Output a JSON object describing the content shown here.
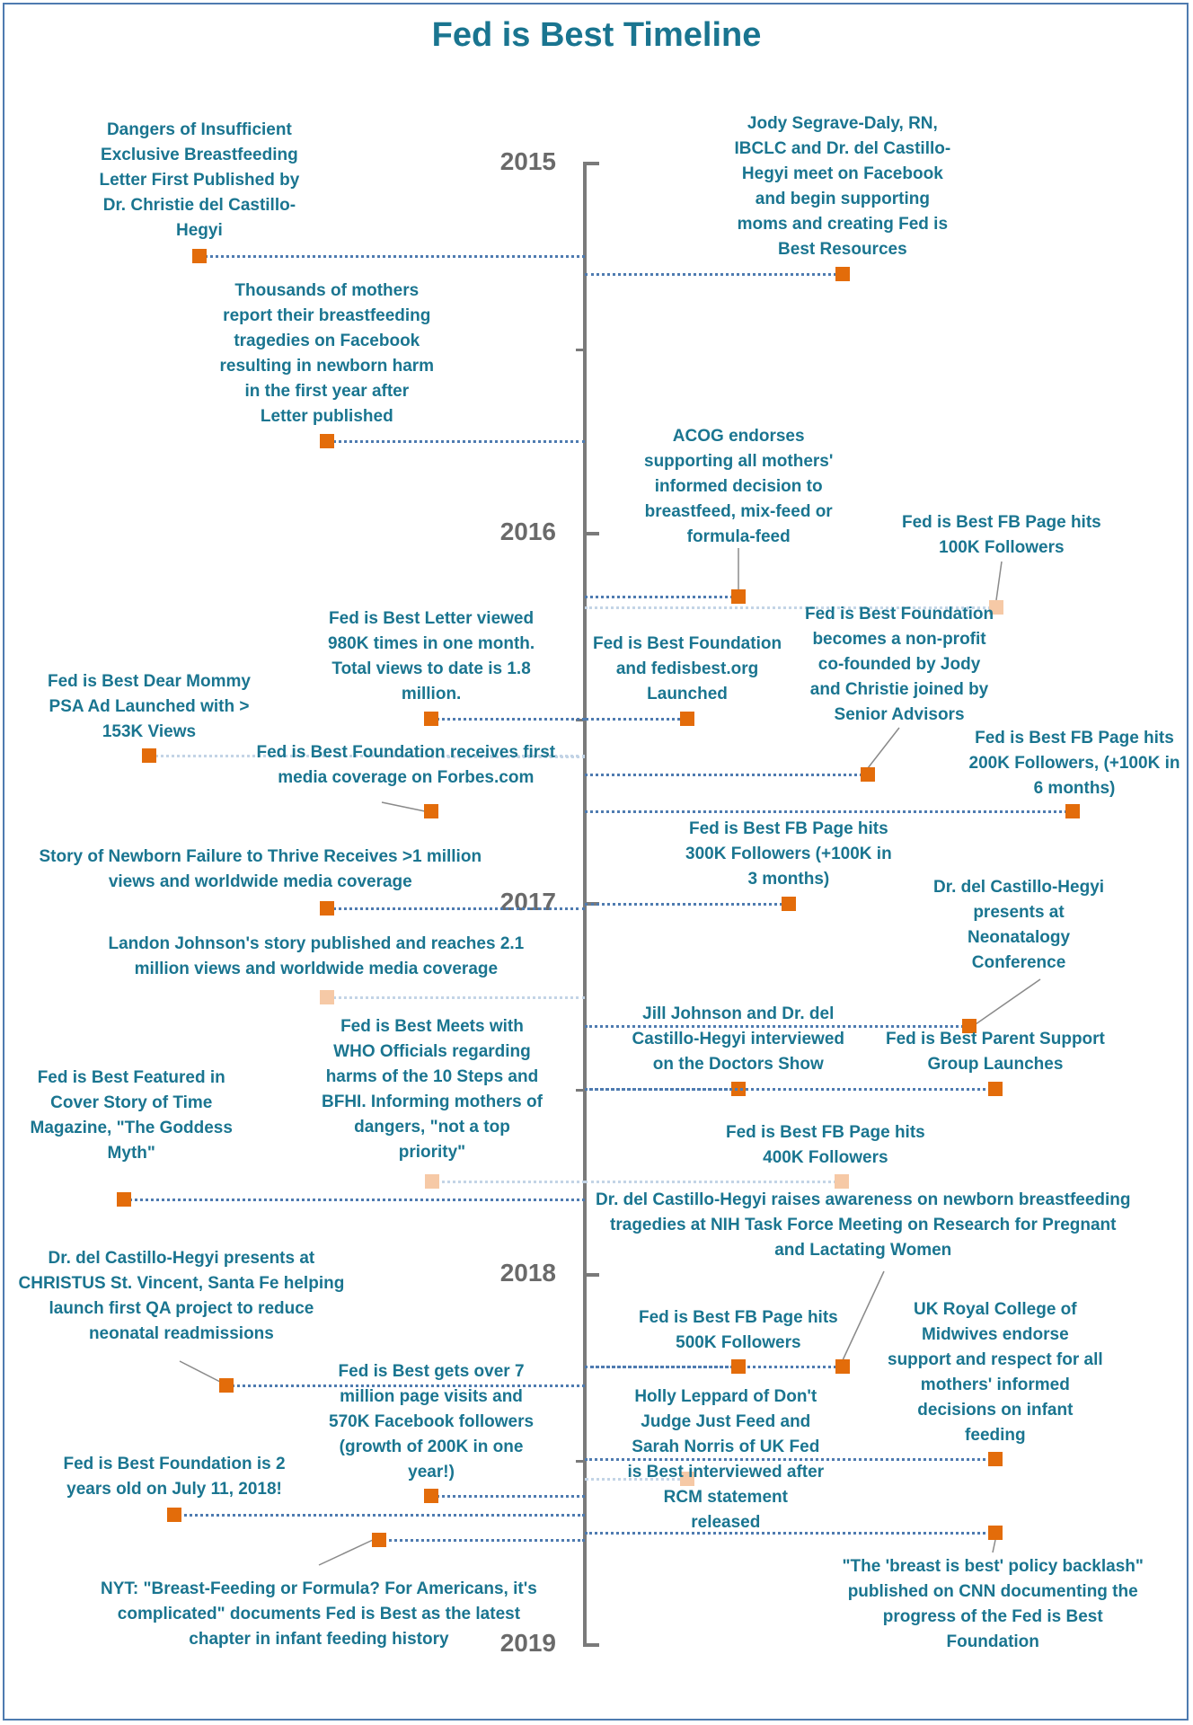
{
  "title": "Fed is Best Timeline",
  "years": [
    "2015",
    "2016",
    "2017",
    "2018",
    "2019"
  ],
  "events": [
    {
      "id": "e01",
      "lines": [
        "Dangers of Insufficient",
        "Exclusive Breastfeeding",
        "Letter First Published by",
        "Dr. Christie del Castillo-",
        "Hegyi"
      ]
    },
    {
      "id": "e02",
      "lines": [
        "Jody Segrave-Daly, RN,",
        "IBCLC and Dr. del Castillo-",
        "Hegyi meet on Facebook",
        "and begin supporting",
        "moms and creating Fed is",
        "Best Resources"
      ]
    },
    {
      "id": "e03",
      "lines": [
        "Thousands of mothers",
        "report their breastfeeding",
        "tragedies on Facebook",
        "resulting in newborn harm",
        "in the first year after",
        "Letter published"
      ]
    },
    {
      "id": "e04",
      "lines": [
        "ACOG endorses",
        "supporting all mothers'",
        "informed decision to",
        "breastfeed, mix-feed or",
        "formula-feed"
      ]
    },
    {
      "id": "e05",
      "lines": [
        "Fed is Best FB Page hits",
        "100K Followers"
      ]
    },
    {
      "id": "e06",
      "lines": [
        "Fed is Best Letter viewed",
        "980K times in one month.",
        "Total views to date is 1.8",
        "million."
      ]
    },
    {
      "id": "e07",
      "lines": [
        "Fed is Best Foundation",
        "and fedisbest.org",
        "Launched"
      ]
    },
    {
      "id": "e08",
      "lines": [
        "Fed is Best Foundation",
        "becomes a non-profit",
        "co-founded by Jody",
        "and Christie joined by",
        "Senior Advisors"
      ]
    },
    {
      "id": "e09",
      "lines": [
        "Fed is Best Dear Mommy",
        "PSA Ad Launched with >",
        "153K Views"
      ]
    },
    {
      "id": "e10",
      "lines": [
        "Fed is Best Foundation receives first",
        "media coverage on Forbes.com"
      ]
    },
    {
      "id": "e11",
      "lines": [
        "Fed is Best FB Page hits",
        "200K Followers, (+100K in",
        "6 months)"
      ]
    },
    {
      "id": "e12",
      "lines": [
        "Fed is Best FB Page hits",
        "300K Followers (+100K in",
        "3 months)"
      ]
    },
    {
      "id": "e13",
      "lines": [
        "Story of Newborn Failure to Thrive Receives >1 million",
        "views and worldwide media coverage"
      ]
    },
    {
      "id": "e14",
      "lines": [
        "Dr. del Castillo-Hegyi",
        "presents at",
        "Neonatalogy",
        "Conference"
      ]
    },
    {
      "id": "e15",
      "lines": [
        "Landon Johnson's story published and reaches 2.1",
        "million views and worldwide media coverage"
      ]
    },
    {
      "id": "e16",
      "lines": [
        "Jill Johnson and Dr. del",
        "Castillo-Hegyi interviewed",
        "on the Doctors Show"
      ]
    },
    {
      "id": "e17",
      "lines": [
        "Fed is Best Parent Support",
        "Group Launches"
      ]
    },
    {
      "id": "e18",
      "lines": [
        "Fed is Best Meets with",
        "WHO Officials regarding",
        "harms of the 10 Steps and",
        "BFHI. Informing mothers of",
        "dangers, \"not a top",
        "priority\""
      ]
    },
    {
      "id": "e19",
      "lines": [
        "Fed is Best Featured in",
        "Cover Story of Time",
        "Magazine, \"The Goddess",
        "Myth\""
      ]
    },
    {
      "id": "e20",
      "lines": [
        "Fed is Best FB Page hits",
        "400K Followers"
      ]
    },
    {
      "id": "e21",
      "lines": [
        "Dr. del Castillo-Hegyi raises awareness on newborn breastfeeding",
        "tragedies at NIH Task Force Meeting on Research for Pregnant",
        "and Lactating Women"
      ]
    },
    {
      "id": "e22",
      "lines": [
        "Dr. del Castillo-Hegyi presents at",
        "CHRISTUS St. Vincent, Santa Fe helping",
        "launch first QA project to reduce",
        "neonatal readmissions"
      ]
    },
    {
      "id": "e23",
      "lines": [
        "Fed is Best FB Page hits",
        "500K Followers"
      ]
    },
    {
      "id": "e24",
      "lines": [
        "UK Royal College of",
        "Midwives endorse",
        "support and respect for all",
        "mothers' informed",
        "decisions on infant",
        "feeding"
      ]
    },
    {
      "id": "e25",
      "lines": [
        "Fed is Best gets over 7",
        "million page visits and",
        "570K Facebook followers",
        "(growth of 200K in one",
        "year!)"
      ]
    },
    {
      "id": "e26",
      "lines": [
        "Holly Leppard of Don't",
        "Judge Just Feed and",
        "Sarah Norris of UK Fed",
        "is Best interviewed after",
        "RCM statement",
        "released"
      ]
    },
    {
      "id": "e27",
      "lines": [
        "Fed is Best Foundation is 2",
        "years old on July 11, 2018!"
      ]
    },
    {
      "id": "e28",
      "lines": [
        "\"The 'breast is best' policy backlash\"",
        "published on CNN documenting the",
        "progress of the Fed is Best",
        "Foundation"
      ]
    },
    {
      "id": "e29",
      "lines": [
        "NYT: \"Breast-Feeding or Formula? For Americans, it's",
        "complicated\" documents Fed is Best as the latest",
        "chapter in infant feeding history"
      ]
    }
  ]
}
